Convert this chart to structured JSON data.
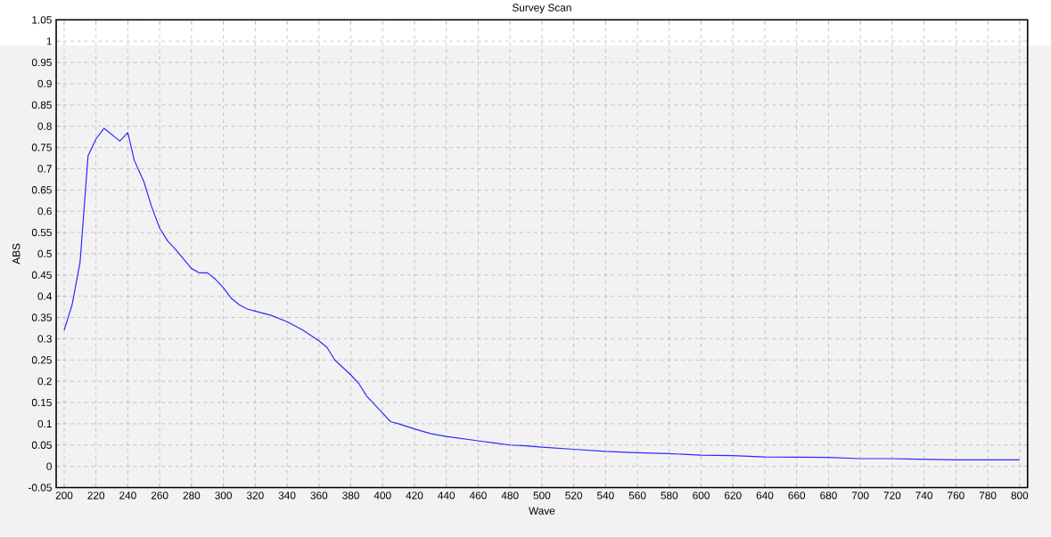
{
  "chart_data": {
    "type": "line",
    "title": "Survey Scan",
    "xlabel": "Wave",
    "ylabel": "ABS",
    "x": [
      200,
      205,
      210,
      215,
      220,
      225,
      230,
      235,
      240,
      244,
      250,
      255,
      260,
      265,
      270,
      280,
      285,
      290,
      295,
      300,
      305,
      310,
      315,
      320,
      330,
      340,
      350,
      360,
      365,
      370,
      380,
      385,
      390,
      400,
      405,
      410,
      420,
      430,
      440,
      450,
      460,
      470,
      480,
      490,
      500,
      520,
      540,
      560,
      580,
      600,
      620,
      640,
      680,
      700,
      720,
      760,
      800
    ],
    "series": [
      {
        "color": "#2a2aff",
        "values": [
          0.32,
          0.38,
          0.48,
          0.73,
          0.77,
          0.795,
          0.78,
          0.765,
          0.785,
          0.72,
          0.67,
          0.61,
          0.56,
          0.53,
          0.51,
          0.465,
          0.455,
          0.455,
          0.44,
          0.42,
          0.395,
          0.38,
          0.37,
          0.365,
          0.355,
          0.34,
          0.32,
          0.295,
          0.28,
          0.25,
          0.215,
          0.195,
          0.165,
          0.125,
          0.105,
          0.1,
          0.088,
          0.077,
          0.07,
          0.065,
          0.06,
          0.055,
          0.05,
          0.048,
          0.045,
          0.04,
          0.035,
          0.032,
          0.03,
          0.026,
          0.025,
          0.022,
          0.021,
          0.018,
          0.018,
          0.015,
          0.015
        ]
      }
    ],
    "xlim": [
      195,
      805
    ],
    "ylim": [
      -0.05,
      1.05
    ],
    "xticks": [
      200,
      220,
      240,
      260,
      280,
      300,
      320,
      340,
      360,
      380,
      400,
      420,
      440,
      460,
      480,
      500,
      520,
      540,
      560,
      580,
      600,
      620,
      640,
      660,
      680,
      700,
      720,
      740,
      760,
      780,
      800
    ],
    "yticks": [
      -0.05,
      0,
      0.05,
      0.1,
      0.15,
      0.2,
      0.25,
      0.3,
      0.35,
      0.4,
      0.45,
      0.5,
      0.55,
      0.6,
      0.65,
      0.7,
      0.75,
      0.8,
      0.85,
      0.9,
      0.95,
      1,
      1.05
    ],
    "grid": true,
    "marker": "none",
    "line_style": "solid"
  }
}
